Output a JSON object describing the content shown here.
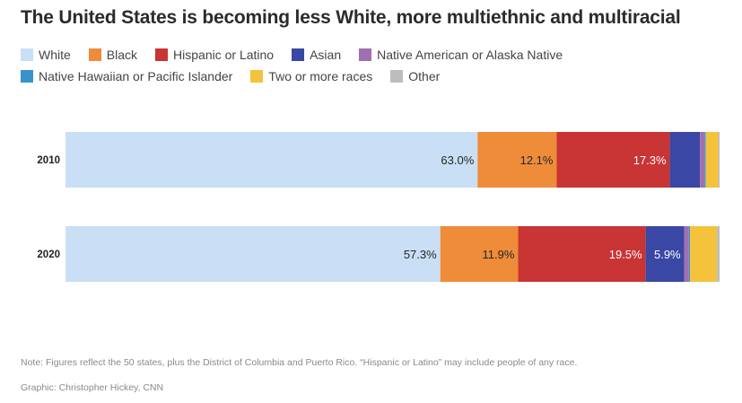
{
  "title": "The United States is becoming less White, more multiethnic and multiracial",
  "note": "Note: Figures reflect the 50 states, plus the District of Columbia and Puerto Rico. “Hispanic or Latino” may include people of any race.",
  "credit": "Graphic: Christopher Hickey, CNN",
  "legend_rows": [
    [
      {
        "label": "White",
        "color": "#c9dff5"
      },
      {
        "label": "Black",
        "color": "#ee8c3a"
      },
      {
        "label": "Hispanic or Latino",
        "color": "#c93434"
      },
      {
        "label": "Asian",
        "color": "#3a47a5"
      },
      {
        "label": "Native American or Alaska Native",
        "color": "#a06fb0"
      }
    ],
    [
      {
        "label": "Native Hawaiian or Pacific Islander",
        "color": "#3a92cc"
      },
      {
        "label": "Two or more races",
        "color": "#f5c23c"
      },
      {
        "label": "Other",
        "color": "#bdbdbd"
      }
    ]
  ],
  "chart_data": {
    "type": "bar",
    "orientation": "horizontal",
    "stacked": true,
    "categories": [
      "2010",
      "2020"
    ],
    "series": [
      {
        "name": "White",
        "color": "#c9dff5",
        "values": [
          63.0,
          57.3
        ],
        "labels": [
          "63.0%",
          "57.3%"
        ]
      },
      {
        "name": "Black",
        "color": "#ee8c3a",
        "values": [
          12.1,
          11.9
        ],
        "labels": [
          "12.1%",
          "11.9%"
        ]
      },
      {
        "name": "Hispanic or Latino",
        "color": "#c93434",
        "values": [
          17.3,
          19.5
        ],
        "labels": [
          "17.3%",
          "19.5%"
        ]
      },
      {
        "name": "Asian",
        "color": "#3a47a5",
        "values": [
          4.6,
          5.9
        ],
        "labels": [
          "",
          "5.9%"
        ]
      },
      {
        "name": "Native American or Alaska Native",
        "color": "#a06fb0",
        "values": [
          0.7,
          0.7
        ],
        "labels": [
          "",
          ""
        ]
      },
      {
        "name": "Native Hawaiian or Pacific Islander",
        "color": "#3a92cc",
        "values": [
          0.2,
          0.2
        ],
        "labels": [
          "",
          ""
        ]
      },
      {
        "name": "Two or more races",
        "color": "#f5c23c",
        "values": [
          1.9,
          4.1
        ],
        "labels": [
          "",
          ""
        ]
      },
      {
        "name": "Other",
        "color": "#bdbdbd",
        "values": [
          0.2,
          0.4
        ],
        "labels": [
          "",
          ""
        ]
      }
    ],
    "xlim": [
      0,
      100
    ],
    "grid": false,
    "legend": "top"
  }
}
